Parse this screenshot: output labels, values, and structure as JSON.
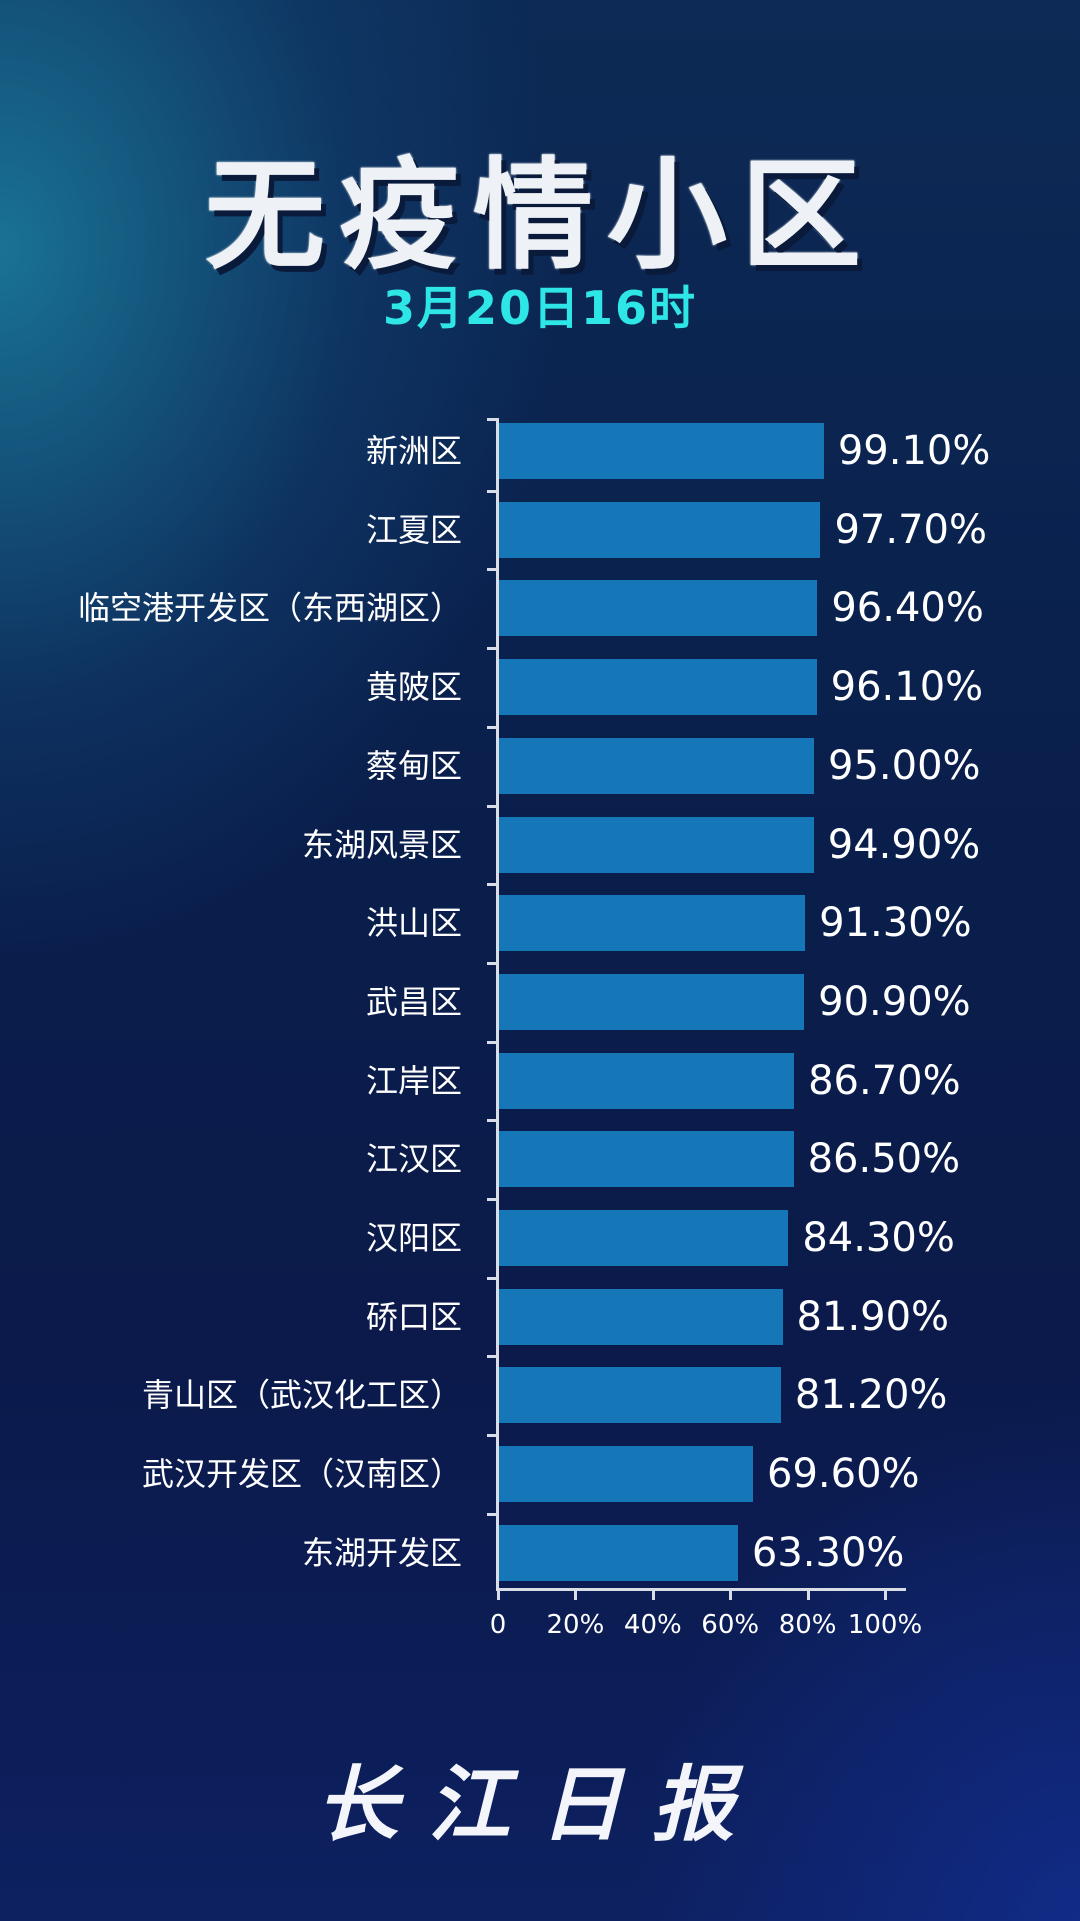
{
  "header": {
    "title": "无疫情小区",
    "subtitle": "3月20日16时"
  },
  "footer": {
    "logo": "长江日报"
  },
  "colors": {
    "bar": "#1677b8",
    "subtitle": "#2ee6e6",
    "background": "#0b1f4c"
  },
  "chart_data": {
    "type": "bar",
    "orientation": "horizontal",
    "title": "无疫情小区",
    "subtitle": "3月20日16时",
    "xlabel": "",
    "ylabel": "",
    "xlim": [
      0,
      100
    ],
    "x_ticks": [
      "0",
      "20%",
      "40%",
      "60%",
      "80%",
      "100%"
    ],
    "grid": false,
    "legend": null,
    "categories": [
      "新洲区",
      "江夏区",
      "临空港开发区（东西湖区）",
      "黄陂区",
      "蔡甸区",
      "东湖风景区",
      "洪山区",
      "武昌区",
      "江岸区",
      "江汉区",
      "汉阳区",
      "硚口区",
      "青山区（武汉化工区）",
      "武汉开发区（汉南区）",
      "东湖开发区"
    ],
    "values": [
      99.1,
      97.7,
      96.4,
      96.1,
      95.0,
      94.9,
      91.3,
      90.9,
      86.7,
      86.5,
      84.3,
      81.9,
      81.2,
      69.6,
      63.3
    ],
    "value_labels": [
      "99.10%",
      "97.70%",
      "96.40%",
      "96.10%",
      "95.00%",
      "94.90%",
      "91.30%",
      "90.90%",
      "86.70%",
      "86.50%",
      "84.30%",
      "81.90%",
      "81.20%",
      "69.60%",
      "63.30%"
    ]
  }
}
